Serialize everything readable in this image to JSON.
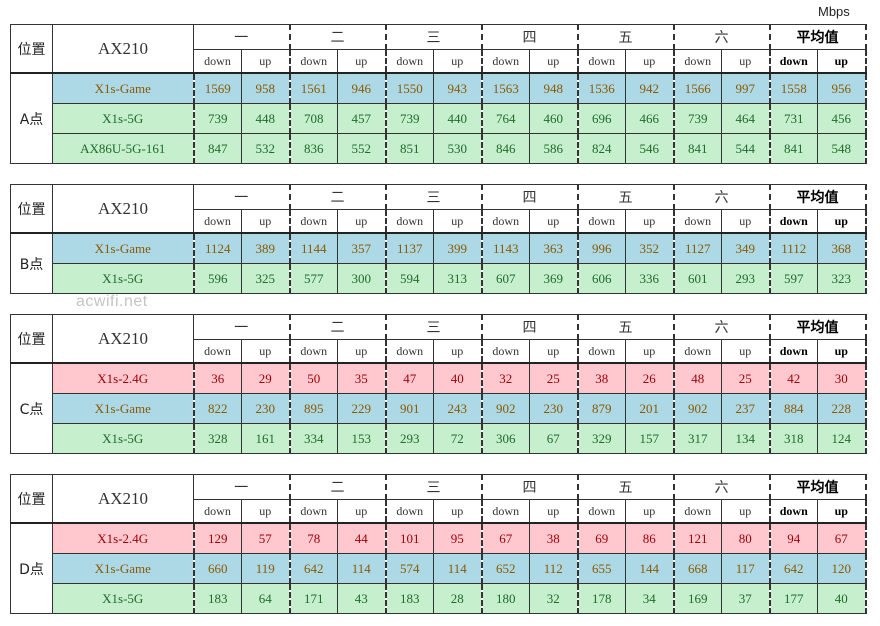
{
  "unit": "Mbps",
  "watermark": "acwifi.net",
  "header": {
    "position": "位置",
    "device": "AX210",
    "days": [
      "一",
      "二",
      "三",
      "四",
      "五",
      "六",
      "平均值"
    ],
    "down": "down",
    "up": "up"
  },
  "colors": {
    "blue": "#add8e6",
    "green": "#c6efce",
    "pink": "#ffc7ce"
  },
  "blocks": [
    {
      "position": "A点",
      "rows": [
        {
          "name": "X1s-Game",
          "color": "blue",
          "values": [
            "1569",
            "958",
            "1561",
            "946",
            "1550",
            "943",
            "1563",
            "948",
            "1536",
            "942",
            "1566",
            "997",
            "1558",
            "956"
          ]
        },
        {
          "name": "X1s-5G",
          "color": "green",
          "values": [
            "739",
            "448",
            "708",
            "457",
            "739",
            "440",
            "764",
            "460",
            "696",
            "466",
            "739",
            "464",
            "731",
            "456"
          ]
        },
        {
          "name": "AX86U-5G-161",
          "color": "green",
          "values": [
            "847",
            "532",
            "836",
            "552",
            "851",
            "530",
            "846",
            "586",
            "824",
            "546",
            "841",
            "544",
            "841",
            "548"
          ]
        }
      ]
    },
    {
      "position": "B点",
      "rows": [
        {
          "name": "X1s-Game",
          "color": "blue",
          "values": [
            "1124",
            "389",
            "1144",
            "357",
            "1137",
            "399",
            "1143",
            "363",
            "996",
            "352",
            "1127",
            "349",
            "1112",
            "368"
          ]
        },
        {
          "name": "X1s-5G",
          "color": "green",
          "values": [
            "596",
            "325",
            "577",
            "300",
            "594",
            "313",
            "607",
            "369",
            "606",
            "336",
            "601",
            "293",
            "597",
            "323"
          ]
        }
      ]
    },
    {
      "position": "C点",
      "rows": [
        {
          "name": "X1s-2.4G",
          "color": "pink",
          "values": [
            "36",
            "29",
            "50",
            "35",
            "47",
            "40",
            "32",
            "25",
            "38",
            "26",
            "48",
            "25",
            "42",
            "30"
          ]
        },
        {
          "name": "X1s-Game",
          "color": "blue",
          "values": [
            "822",
            "230",
            "895",
            "229",
            "901",
            "243",
            "902",
            "230",
            "879",
            "201",
            "902",
            "237",
            "884",
            "228"
          ]
        },
        {
          "name": "X1s-5G",
          "color": "green",
          "values": [
            "328",
            "161",
            "334",
            "153",
            "293",
            "72",
            "306",
            "67",
            "329",
            "157",
            "317",
            "134",
            "318",
            "124"
          ]
        }
      ]
    },
    {
      "position": "D点",
      "rows": [
        {
          "name": "X1s-2.4G",
          "color": "pink",
          "values": [
            "129",
            "57",
            "78",
            "44",
            "101",
            "95",
            "67",
            "38",
            "69",
            "86",
            "121",
            "80",
            "94",
            "67"
          ]
        },
        {
          "name": "X1s-Game",
          "color": "blue",
          "values": [
            "660",
            "119",
            "642",
            "114",
            "574",
            "114",
            "652",
            "112",
            "655",
            "144",
            "668",
            "117",
            "642",
            "120"
          ]
        },
        {
          "name": "X1s-5G",
          "color": "green",
          "values": [
            "183",
            "64",
            "171",
            "43",
            "183",
            "28",
            "180",
            "32",
            "178",
            "34",
            "169",
            "37",
            "177",
            "40"
          ]
        }
      ]
    }
  ]
}
